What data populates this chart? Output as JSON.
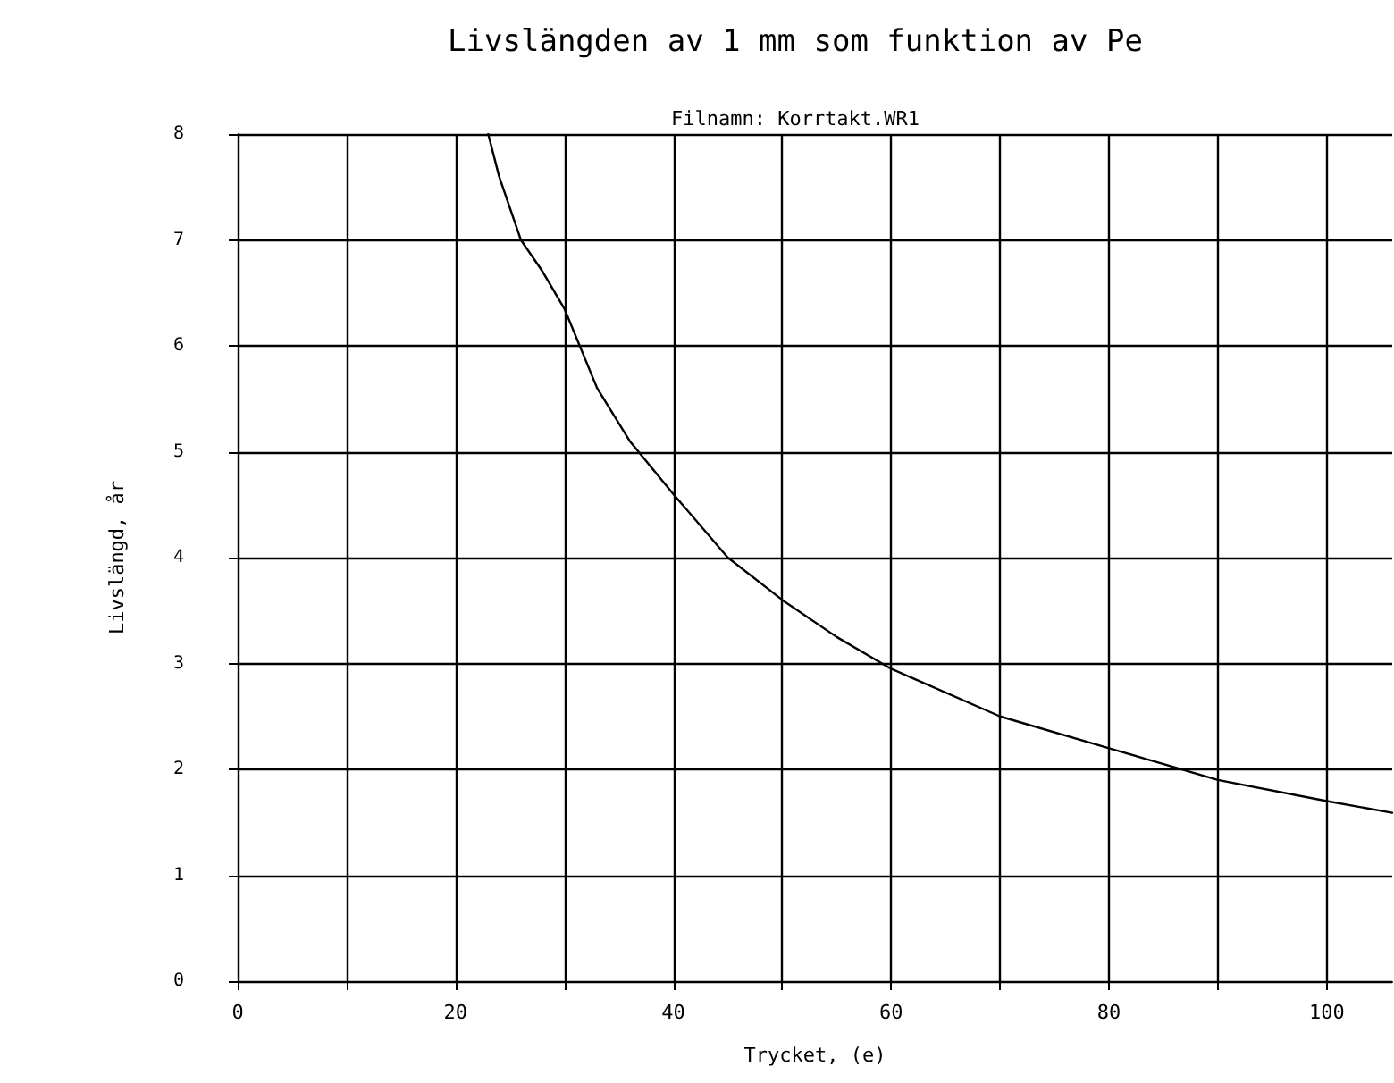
{
  "chart_data": {
    "type": "line",
    "title": "Livslängden av 1 mm som funktion av Pe",
    "subtitle": "Filnamn: Korrtakt.WR1",
    "xlabel": "Trycket, (e)",
    "ylabel": "Livslängd, år",
    "x": [
      23,
      24,
      26,
      28,
      30,
      33,
      36,
      40,
      45,
      50,
      55,
      60,
      70,
      80,
      90,
      100,
      106
    ],
    "series": [
      {
        "color": "#000000",
        "values": [
          8,
          7.6,
          7,
          6.7,
          6.35,
          5.6,
          5.1,
          4.6,
          4.0,
          3.6,
          3.25,
          2.95,
          2.5,
          2.2,
          1.9,
          1.7,
          1.59
        ]
      }
    ],
    "xlim": [
      0,
      106
    ],
    "xticks": [
      0,
      {
        "value": 10,
        "label": null
      },
      20,
      {
        "value": 30,
        "label": null
      },
      40,
      {
        "value": 50,
        "label": null
      },
      60,
      {
        "value": 70,
        "label": null
      },
      80,
      {
        "value": 90,
        "label": null
      },
      100
    ],
    "ylim": [
      0,
      8
    ],
    "yticks": [
      0,
      1,
      2,
      3,
      4,
      5,
      6,
      7,
      8
    ],
    "grid": true,
    "marker": "none",
    "line_style": "solid"
  }
}
